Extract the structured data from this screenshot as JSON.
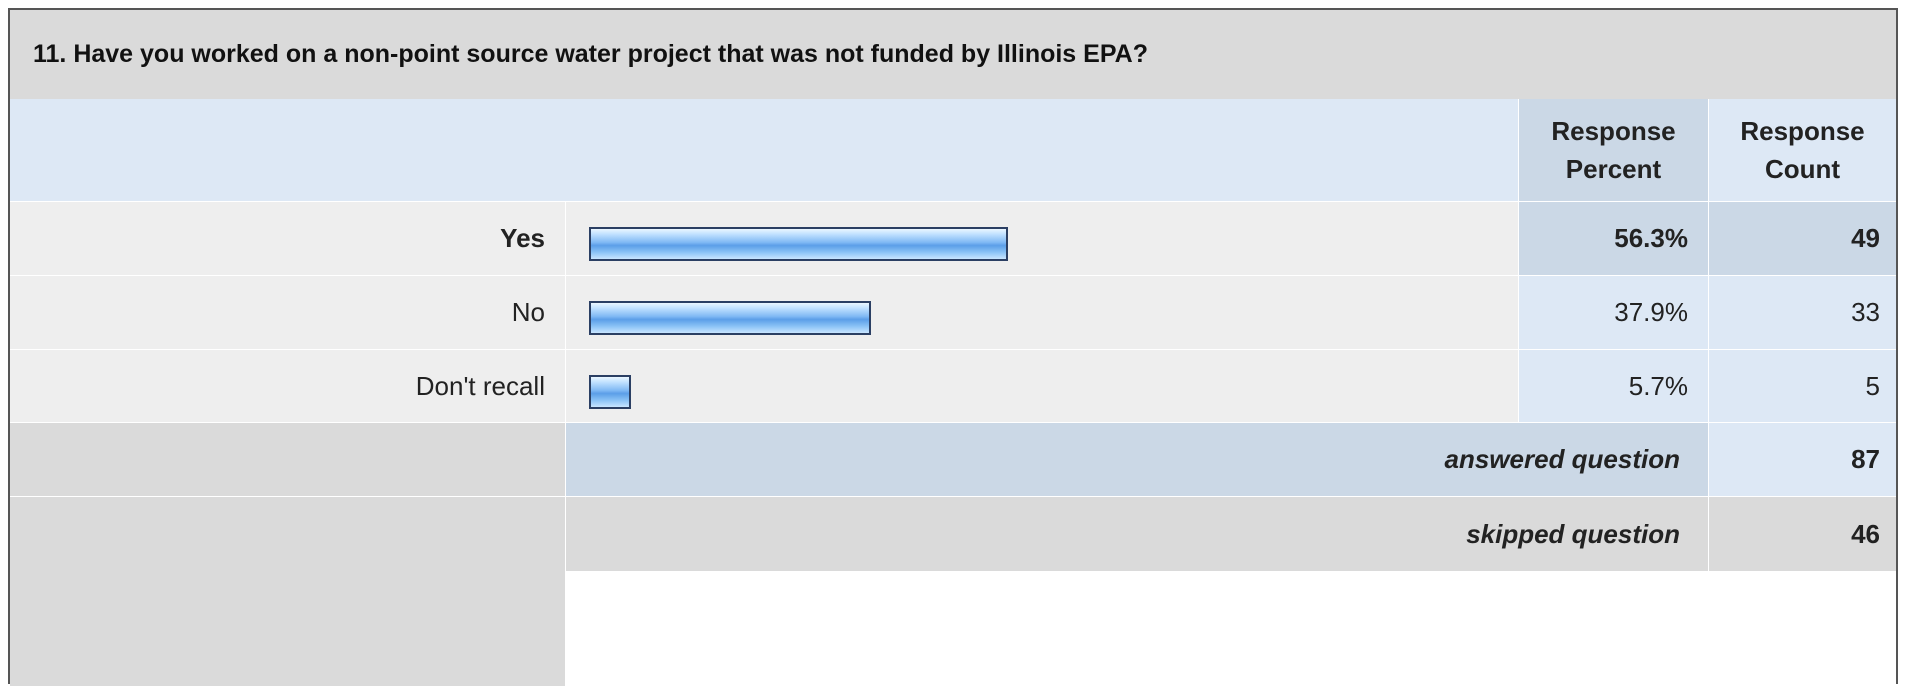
{
  "title": "11. Have you worked on a non-point source water project that was not funded by Illinois EPA?",
  "header": {
    "percent_label": "Response Percent",
    "count_label": "Response Count"
  },
  "chart_data": {
    "type": "bar",
    "orientation": "horizontal",
    "categories": [
      "Yes",
      "No",
      "Don't recall"
    ],
    "series": [
      {
        "name": "Response Percent",
        "values": [
          56.3,
          37.9,
          5.7
        ]
      },
      {
        "name": "Response Count",
        "values": [
          49,
          33,
          5
        ]
      }
    ],
    "xlim": [
      0,
      100
    ]
  },
  "rows": [
    {
      "label": "Yes",
      "percent": 56.3,
      "percent_text": "56.3%",
      "count": "49",
      "bold": true
    },
    {
      "label": "No",
      "percent": 37.9,
      "percent_text": "37.9%",
      "count": "33",
      "bold": false
    },
    {
      "label": "Don't recall",
      "percent": 5.7,
      "percent_text": "5.7%",
      "count": "5",
      "bold": false
    }
  ],
  "footer": {
    "answered_label": "answered question",
    "answered_count": "87",
    "skipped_label": "skipped question",
    "skipped_count": "46"
  }
}
